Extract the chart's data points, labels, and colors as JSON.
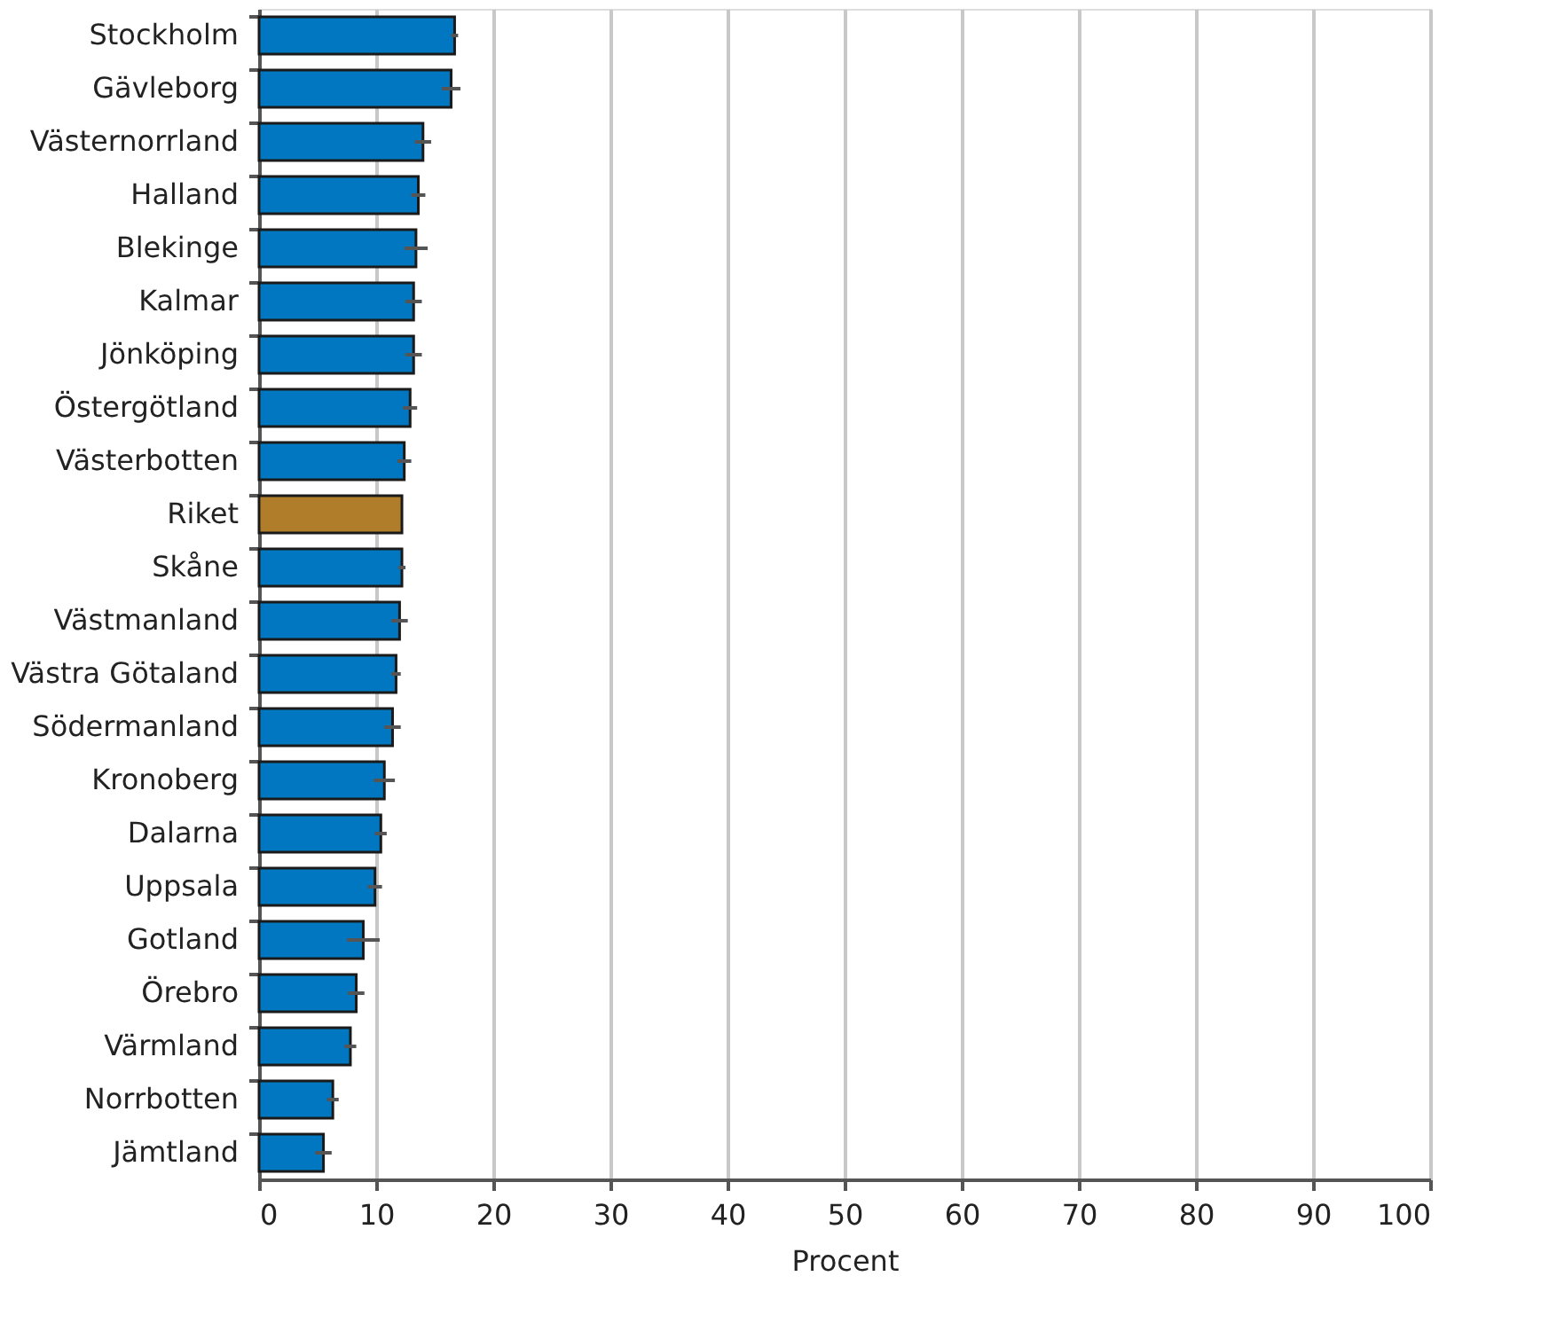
{
  "chart_data": {
    "type": "bar",
    "orientation": "horizontal",
    "xlabel": "Procent",
    "categories": [
      "Stockholm",
      "Gävleborg",
      "Västernorrland",
      "Halland",
      "Blekinge",
      "Kalmar",
      "Jönköping",
      "Östergötland",
      "Västerbotten",
      "Riket",
      "Skåne",
      "Västmanland",
      "Västra Götaland",
      "Södermanland",
      "Kronoberg",
      "Dalarna",
      "Uppsala",
      "Gotland",
      "Örebro",
      "Värmland",
      "Norrbotten",
      "Jämtland"
    ],
    "values": [
      16.7,
      16.4,
      14.0,
      13.6,
      13.4,
      13.2,
      13.2,
      12.9,
      12.4,
      12.2,
      12.2,
      12.0,
      11.7,
      11.4,
      10.7,
      10.4,
      9.9,
      8.9,
      8.3,
      7.8,
      6.3,
      5.5
    ],
    "errors": [
      0.3,
      0.8,
      0.7,
      0.6,
      1.0,
      0.7,
      0.7,
      0.6,
      0.6,
      null,
      0.3,
      0.7,
      0.4,
      0.7,
      0.9,
      0.5,
      0.6,
      1.4,
      0.7,
      0.5,
      0.5,
      0.7
    ],
    "colors": [
      "#0077c0",
      "#0077c0",
      "#0077c0",
      "#0077c0",
      "#0077c0",
      "#0077c0",
      "#0077c0",
      "#0077c0",
      "#0077c0",
      "#b07d2b",
      "#0077c0",
      "#0077c0",
      "#0077c0",
      "#0077c0",
      "#0077c0",
      "#0077c0",
      "#0077c0",
      "#0077c0",
      "#0077c0",
      "#0077c0",
      "#0077c0",
      "#0077c0"
    ],
    "xlim": [
      0,
      100
    ],
    "xticks": [
      0,
      10,
      20,
      30,
      40,
      50,
      60,
      70,
      80,
      90,
      100
    ],
    "grid": "x"
  }
}
